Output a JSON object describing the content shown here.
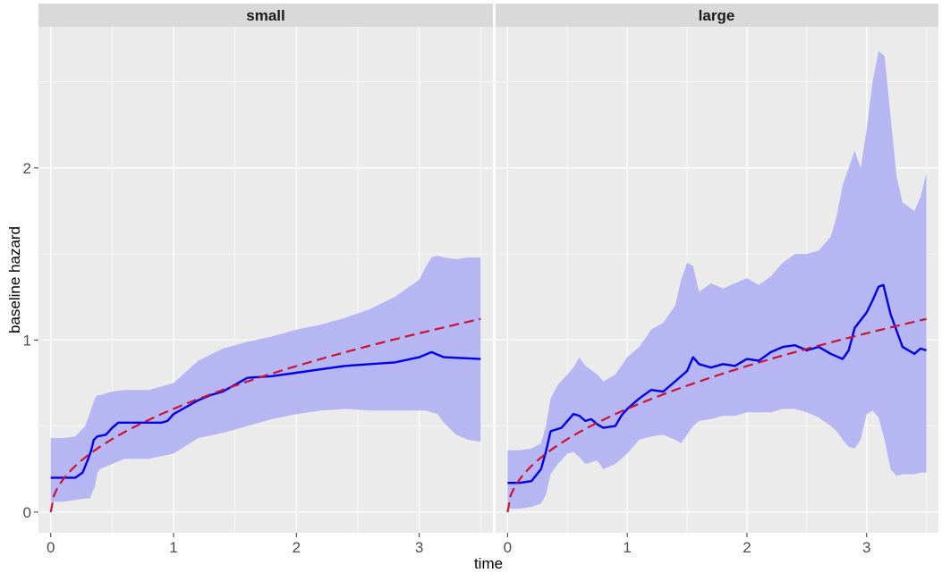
{
  "chart_data": {
    "type": "area",
    "xlabel": "time",
    "ylabel": "baseline hazard",
    "xlim": [
      -0.1,
      3.6
    ],
    "ylim": [
      -0.12,
      2.82
    ],
    "x_ticks": [
      0,
      1,
      2,
      3
    ],
    "y_ticks": [
      0,
      1,
      2
    ],
    "grid": true,
    "colors": {
      "panel_bg": "#ebebeb",
      "strip_bg": "#d9d9d9",
      "grid": "#ffffff",
      "ribbon": "#b6b6f2",
      "estimate": "#0000ee",
      "true_hazard": "#cc1133"
    },
    "panels": [
      {
        "strip": "small",
        "series": [
          {
            "role": "ribbon",
            "x": [
              0,
              0.1,
              0.2,
              0.28,
              0.32,
              0.34,
              0.36,
              0.38,
              0.4,
              0.5,
              0.6,
              0.8,
              1.0,
              1.2,
              1.4,
              1.6,
              1.8,
              2.0,
              2.2,
              2.4,
              2.6,
              2.8,
              2.9,
              3.0,
              3.05,
              3.1,
              3.15,
              3.2,
              3.3,
              3.4,
              3.5
            ],
            "lower": [
              0.06,
              0.06,
              0.07,
              0.08,
              0.08,
              0.12,
              0.15,
              0.23,
              0.25,
              0.28,
              0.31,
              0.31,
              0.34,
              0.43,
              0.46,
              0.5,
              0.54,
              0.57,
              0.59,
              0.6,
              0.59,
              0.59,
              0.59,
              0.59,
              0.59,
              0.58,
              0.57,
              0.52,
              0.45,
              0.42,
              0.41
            ],
            "upper": [
              0.43,
              0.43,
              0.44,
              0.5,
              0.58,
              0.62,
              0.66,
              0.68,
              0.68,
              0.7,
              0.71,
              0.71,
              0.75,
              0.88,
              0.95,
              0.99,
              1.02,
              1.06,
              1.09,
              1.13,
              1.18,
              1.25,
              1.3,
              1.35,
              1.42,
              1.48,
              1.49,
              1.48,
              1.47,
              1.48,
              1.48
            ]
          },
          {
            "role": "estimate",
            "x": [
              0,
              0.1,
              0.2,
              0.26,
              0.3,
              0.33,
              0.35,
              0.38,
              0.45,
              0.5,
              0.55,
              0.7,
              0.9,
              0.95,
              1.0,
              1.1,
              1.2,
              1.3,
              1.4,
              1.5,
              1.6,
              1.8,
              2.0,
              2.2,
              2.4,
              2.6,
              2.8,
              3.0,
              3.1,
              3.2,
              3.5
            ],
            "y": [
              0.2,
              0.2,
              0.2,
              0.23,
              0.3,
              0.36,
              0.42,
              0.44,
              0.45,
              0.49,
              0.52,
              0.52,
              0.52,
              0.53,
              0.57,
              0.61,
              0.65,
              0.68,
              0.7,
              0.74,
              0.78,
              0.79,
              0.81,
              0.83,
              0.85,
              0.86,
              0.87,
              0.9,
              0.93,
              0.9,
              0.89
            ]
          }
        ]
      },
      {
        "strip": "large",
        "series": [
          {
            "role": "ribbon",
            "x": [
              0,
              0.1,
              0.2,
              0.28,
              0.32,
              0.36,
              0.42,
              0.5,
              0.55,
              0.6,
              0.65,
              0.75,
              0.8,
              0.9,
              1.0,
              1.1,
              1.2,
              1.3,
              1.4,
              1.45,
              1.5,
              1.55,
              1.6,
              1.7,
              1.8,
              1.9,
              2.0,
              2.1,
              2.2,
              2.3,
              2.4,
              2.5,
              2.6,
              2.7,
              2.75,
              2.8,
              2.85,
              2.9,
              2.95,
              3.0,
              3.05,
              3.1,
              3.15,
              3.2,
              3.25,
              3.3,
              3.4,
              3.45,
              3.5
            ],
            "lower": [
              0.02,
              0.02,
              0.03,
              0.05,
              0.1,
              0.22,
              0.28,
              0.34,
              0.35,
              0.32,
              0.28,
              0.3,
              0.25,
              0.28,
              0.34,
              0.42,
              0.44,
              0.45,
              0.42,
              0.4,
              0.45,
              0.5,
              0.53,
              0.54,
              0.56,
              0.56,
              0.58,
              0.58,
              0.58,
              0.6,
              0.6,
              0.58,
              0.55,
              0.5,
              0.47,
              0.42,
              0.38,
              0.37,
              0.42,
              0.57,
              0.59,
              0.55,
              0.42,
              0.25,
              0.21,
              0.22,
              0.22,
              0.23,
              0.23
            ],
            "upper": [
              0.36,
              0.36,
              0.37,
              0.4,
              0.5,
              0.66,
              0.74,
              0.8,
              0.84,
              0.9,
              0.85,
              0.8,
              0.76,
              0.8,
              0.9,
              0.96,
              1.06,
              1.1,
              1.2,
              1.35,
              1.45,
              1.43,
              1.28,
              1.33,
              1.3,
              1.33,
              1.36,
              1.32,
              1.37,
              1.45,
              1.5,
              1.5,
              1.52,
              1.6,
              1.72,
              1.9,
              2.0,
              2.1,
              2.0,
              2.22,
              2.5,
              2.68,
              2.65,
              2.3,
              1.95,
              1.8,
              1.75,
              1.83,
              1.97
            ]
          },
          {
            "role": "estimate",
            "x": [
              0,
              0.1,
              0.2,
              0.28,
              0.32,
              0.36,
              0.45,
              0.5,
              0.55,
              0.6,
              0.65,
              0.7,
              0.75,
              0.8,
              0.9,
              0.95,
              1.0,
              1.1,
              1.2,
              1.3,
              1.4,
              1.5,
              1.55,
              1.6,
              1.7,
              1.8,
              1.9,
              2.0,
              2.1,
              2.2,
              2.3,
              2.4,
              2.5,
              2.6,
              2.7,
              2.8,
              2.85,
              2.9,
              3.0,
              3.05,
              3.1,
              3.14,
              3.2,
              3.3,
              3.4,
              3.45,
              3.5
            ],
            "y": [
              0.17,
              0.17,
              0.18,
              0.25,
              0.35,
              0.47,
              0.49,
              0.53,
              0.57,
              0.56,
              0.53,
              0.54,
              0.51,
              0.49,
              0.5,
              0.56,
              0.6,
              0.66,
              0.71,
              0.7,
              0.76,
              0.82,
              0.9,
              0.86,
              0.84,
              0.86,
              0.85,
              0.89,
              0.88,
              0.93,
              0.96,
              0.97,
              0.94,
              0.96,
              0.92,
              0.89,
              0.94,
              1.07,
              1.16,
              1.23,
              1.31,
              1.32,
              1.15,
              0.96,
              0.92,
              0.95,
              0.94
            ]
          }
        ]
      }
    ],
    "true_hazard": {
      "formula": "0.6*sqrt(x)",
      "style": "dashed"
    }
  }
}
